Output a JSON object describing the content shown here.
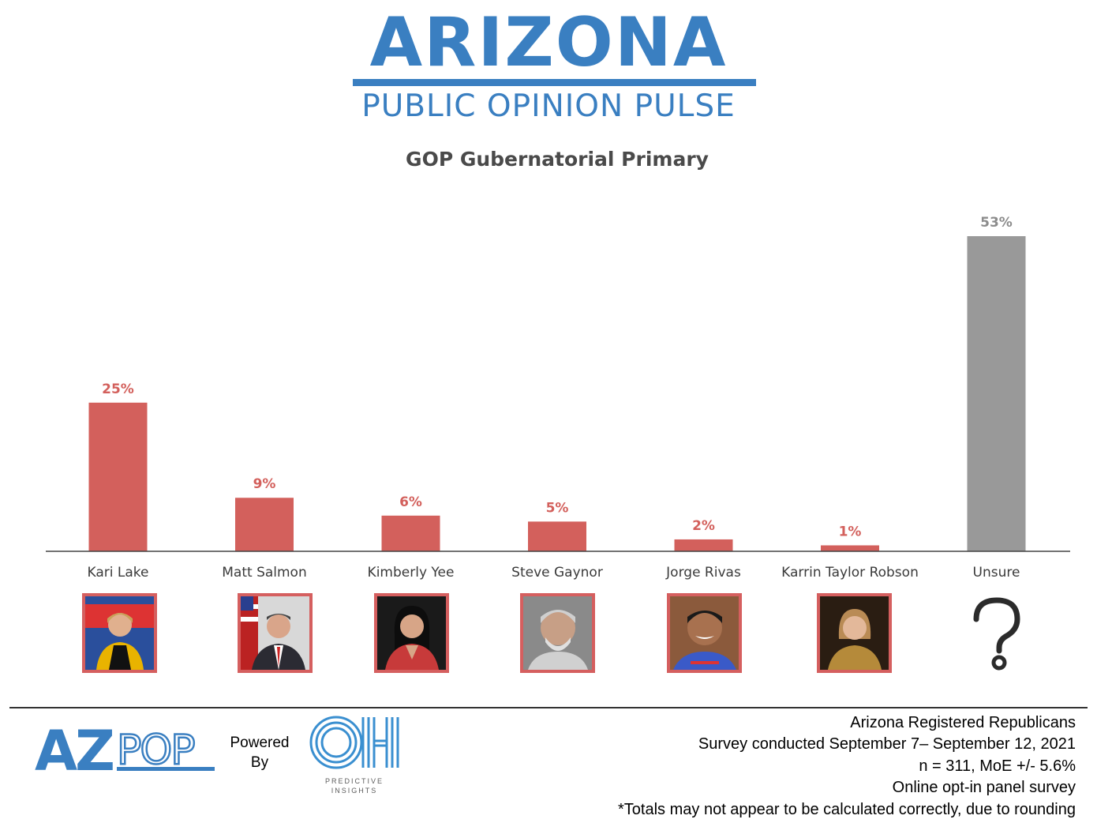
{
  "header": {
    "logo_title": "ARIZONA",
    "logo_subtitle": "PUBLIC OPINION PULSE"
  },
  "chart_data": {
    "type": "bar",
    "title": "GOP Gubernatorial Primary",
    "categories": [
      "Kari Lake",
      "Matt Salmon",
      "Kimberly Yee",
      "Steve Gaynor",
      "Jorge Rivas",
      "Karrin Taylor Robson",
      "Unsure"
    ],
    "values": [
      25,
      9,
      6,
      5,
      2,
      1,
      53
    ],
    "value_labels": [
      "25%",
      "9%",
      "6%",
      "5%",
      "2%",
      "1%",
      "53%"
    ],
    "bar_colors": [
      "#d3605c",
      "#d3605c",
      "#d3605c",
      "#d3605c",
      "#d3605c",
      "#d3605c",
      "#999999"
    ],
    "label_colors": [
      "#d3605c",
      "#d3605c",
      "#d3605c",
      "#d3605c",
      "#d3605c",
      "#d3605c",
      "#8c8c8c"
    ],
    "xlabel": "",
    "ylabel": "",
    "ylim": [
      0,
      53
    ],
    "grid": false,
    "legend": "none"
  },
  "candidate_photos": [
    "photo",
    "photo",
    "photo",
    "photo",
    "photo",
    "photo",
    "question-mark-icon"
  ],
  "footer": {
    "azpop_logo": "AZPOP",
    "powered_by": "Powered\nBy",
    "oh_logo": "OH",
    "oh_subtitle": "PREDICTIVE\nINSIGHTS",
    "notes": [
      "Arizona Registered Republicans",
      "Survey conducted September 7– September 12, 2021",
      "n = 311, MoE +/- 5.6%",
      "Online opt-in panel survey",
      "*Totals may not appear to be calculated correctly, due to rounding"
    ]
  },
  "colors": {
    "brand_blue": "#3a7fc1",
    "candidate_red": "#d3605c",
    "unsure_gray": "#999999"
  }
}
